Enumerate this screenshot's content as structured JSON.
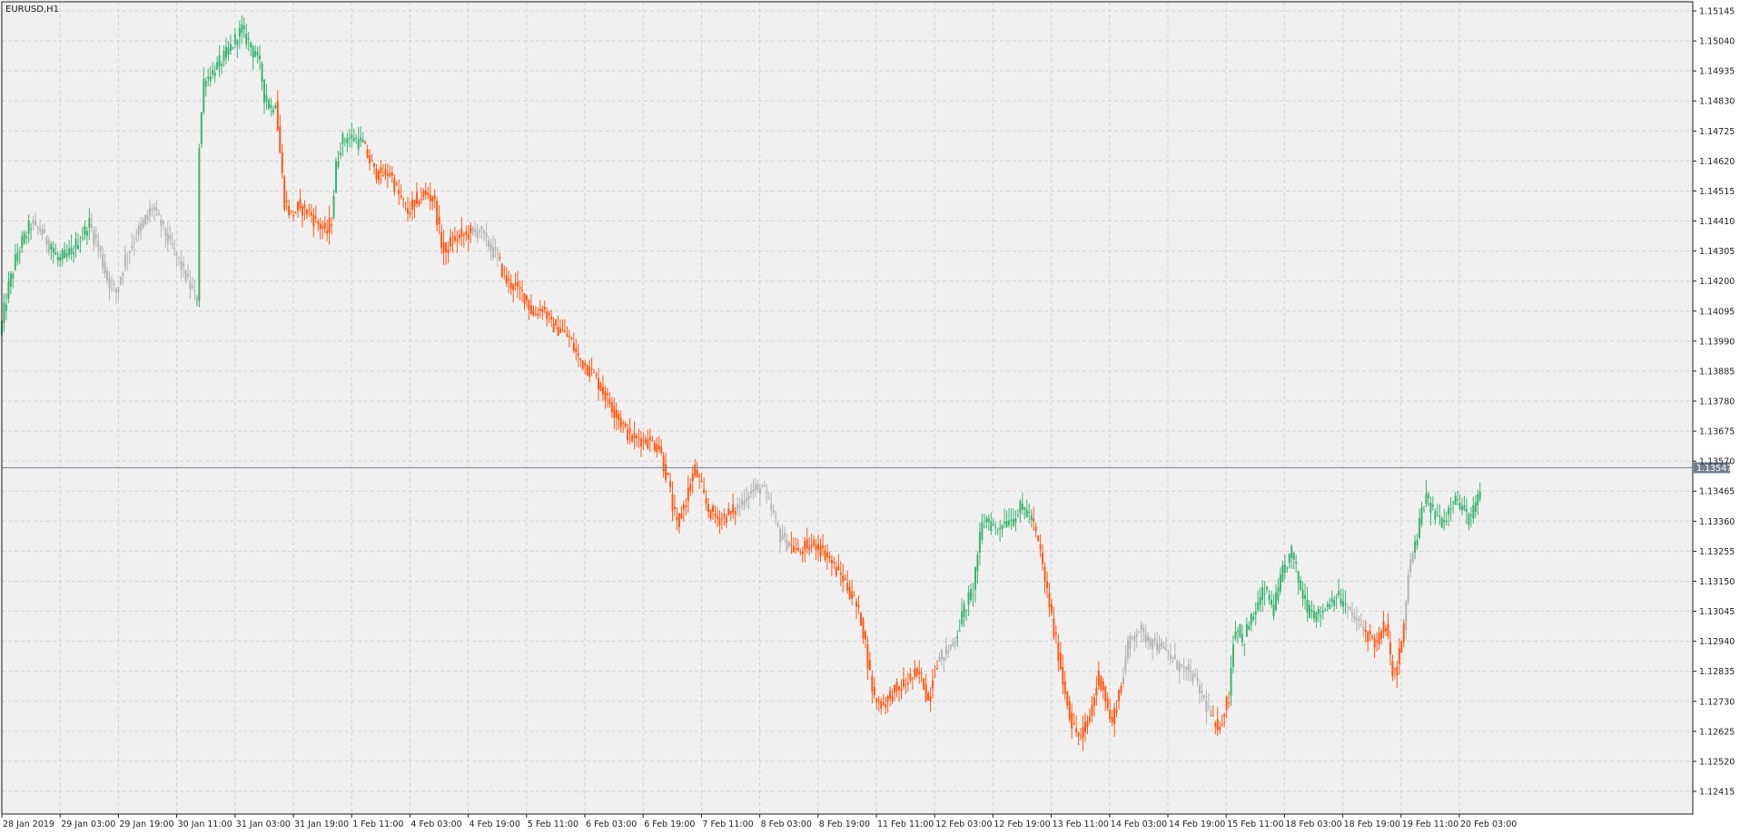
{
  "window": {
    "symbol_label": "EURUSD,H1"
  },
  "colors": {
    "background": "#f0f0f0",
    "grid": "#d2d2d2",
    "axis": "#1e1e1e",
    "bull": "#3cb371",
    "bear": "#ff5a14",
    "neutral": "#b4b4b4",
    "price_line": "#708090",
    "badge_bg": "#708090"
  },
  "chart_data": {
    "type": "candlestick",
    "symbol": "EURUSD",
    "timeframe": "H1",
    "ylim": [
      1.1236,
      1.1516
    ],
    "y_ticks": [
      "1.15145",
      "1.15040",
      "1.14935",
      "1.14830",
      "1.14725",
      "1.14620",
      "1.14515",
      "1.14410",
      "1.14305",
      "1.14200",
      "1.14095",
      "1.13990",
      "1.13885",
      "1.13780",
      "1.13675",
      "1.13570",
      "1.13465",
      "1.13360",
      "1.13255",
      "1.13150",
      "1.13045",
      "1.12940",
      "1.12835",
      "1.12730",
      "1.12625",
      "1.12520",
      "1.12415"
    ],
    "x_ticks": [
      "28 Jan 2019",
      "29 Jan 03:00",
      "29 Jan 19:00",
      "30 Jan 11:00",
      "31 Jan 03:00",
      "31 Jan 19:00",
      "1 Feb 11:00",
      "4 Feb 03:00",
      "4 Feb 19:00",
      "5 Feb 11:00",
      "6 Feb 03:00",
      "6 Feb 19:00",
      "7 Feb 11:00",
      "8 Feb 03:00",
      "8 Feb 19:00",
      "11 Feb 11:00",
      "12 Feb 03:00",
      "12 Feb 19:00",
      "13 Feb 11:00",
      "14 Feb 03:00",
      "14 Feb 19:00",
      "15 Feb 11:00",
      "18 Feb 03:00",
      "18 Feb 19:00",
      "19 Feb 11:00",
      "20 Feb 03:00"
    ],
    "current_price": "1.13547",
    "current_price_value": 1.13547,
    "segments": [
      {
        "color": "bull",
        "points": [
          [
            0,
            1.1401
          ],
          [
            4,
            1.1418
          ],
          [
            8,
            1.143
          ],
          [
            14,
            1.144
          ]
        ]
      },
      {
        "color": "neutral",
        "points": [
          [
            14,
            1.144
          ],
          [
            18,
            1.1438
          ],
          [
            22,
            1.1433
          ]
        ]
      },
      {
        "color": "bull",
        "points": [
          [
            22,
            1.1433
          ],
          [
            26,
            1.1427
          ],
          [
            32,
            1.143
          ],
          [
            36,
            1.1435
          ],
          [
            40,
            1.144
          ]
        ]
      },
      {
        "color": "neutral",
        "points": [
          [
            40,
            1.144
          ],
          [
            44,
            1.1432
          ],
          [
            48,
            1.1421
          ],
          [
            52,
            1.1416
          ],
          [
            56,
            1.1428
          ],
          [
            60,
            1.1435
          ],
          [
            64,
            1.144
          ],
          [
            68,
            1.1446
          ],
          [
            72,
            1.144
          ],
          [
            76,
            1.1433
          ],
          [
            80,
            1.1427
          ],
          [
            84,
            1.142
          ],
          [
            88,
            1.1413
          ]
        ]
      },
      {
        "color": "bull",
        "points": [
          [
            88,
            1.1413
          ],
          [
            89,
            1.1468
          ],
          [
            91,
            1.149
          ],
          [
            95,
            1.1493
          ],
          [
            100,
            1.1498
          ],
          [
            104,
            1.1503
          ],
          [
            108,
            1.1508
          ],
          [
            112,
            1.1502
          ],
          [
            116,
            1.1496
          ],
          [
            118,
            1.1485
          ],
          [
            121,
            1.148
          ],
          [
            123,
            1.1483
          ]
        ]
      },
      {
        "color": "bear",
        "points": [
          [
            123,
            1.1483
          ],
          [
            125,
            1.1465
          ],
          [
            127,
            1.1448
          ],
          [
            130,
            1.1443
          ],
          [
            134,
            1.1446
          ],
          [
            138,
            1.1444
          ],
          [
            142,
            1.144
          ],
          [
            146,
            1.1437
          ],
          [
            148,
            1.1442
          ]
        ]
      },
      {
        "color": "bull",
        "points": [
          [
            148,
            1.1442
          ],
          [
            150,
            1.146
          ],
          [
            152,
            1.1468
          ],
          [
            154,
            1.147
          ],
          [
            158,
            1.147
          ],
          [
            162,
            1.1468
          ]
        ]
      },
      {
        "color": "bear",
        "points": [
          [
            162,
            1.1468
          ],
          [
            166,
            1.146
          ],
          [
            170,
            1.1457
          ],
          [
            174,
            1.1458
          ],
          [
            178,
            1.145
          ],
          [
            182,
            1.1444
          ],
          [
            186,
            1.1448
          ],
          [
            190,
            1.1451
          ],
          [
            194,
            1.1448
          ],
          [
            196,
            1.1437
          ],
          [
            198,
            1.143
          ],
          [
            202,
            1.1434
          ],
          [
            206,
            1.1436
          ],
          [
            210,
            1.1437
          ]
        ]
      },
      {
        "color": "neutral",
        "points": [
          [
            210,
            1.1437
          ],
          [
            214,
            1.1438
          ],
          [
            218,
            1.1433
          ],
          [
            222,
            1.1428
          ]
        ]
      },
      {
        "color": "bear",
        "points": [
          [
            222,
            1.1428
          ],
          [
            226,
            1.142
          ],
          [
            230,
            1.1418
          ],
          [
            234,
            1.1415
          ],
          [
            238,
            1.1408
          ],
          [
            242,
            1.1411
          ],
          [
            246,
            1.1405
          ],
          [
            250,
            1.1403
          ],
          [
            254,
            1.14
          ],
          [
            258,
            1.1393
          ],
          [
            262,
            1.139
          ],
          [
            266,
            1.1386
          ],
          [
            270,
            1.138
          ],
          [
            274,
            1.1375
          ],
          [
            278,
            1.1369
          ],
          [
            282,
            1.1365
          ],
          [
            286,
            1.1365
          ],
          [
            290,
            1.1364
          ],
          [
            294,
            1.1362
          ],
          [
            298,
            1.135
          ],
          [
            300,
            1.1341
          ],
          [
            302,
            1.1334
          ],
          [
            304,
            1.134
          ],
          [
            306,
            1.1343
          ],
          [
            308,
            1.135
          ],
          [
            310,
            1.1354
          ],
          [
            312,
            1.135
          ],
          [
            314,
            1.1344
          ],
          [
            316,
            1.134
          ],
          [
            320,
            1.1337
          ],
          [
            324,
            1.1338
          ],
          [
            328,
            1.134
          ]
        ]
      },
      {
        "color": "neutral",
        "points": [
          [
            328,
            1.134
          ],
          [
            332,
            1.1344
          ],
          [
            336,
            1.1347
          ],
          [
            340,
            1.1348
          ],
          [
            344,
            1.134
          ],
          [
            348,
            1.1331
          ],
          [
            352,
            1.1328
          ]
        ]
      },
      {
        "color": "bear",
        "points": [
          [
            352,
            1.1328
          ],
          [
            356,
            1.1325
          ],
          [
            360,
            1.1327
          ],
          [
            364,
            1.1328
          ],
          [
            368,
            1.1325
          ],
          [
            372,
            1.132
          ],
          [
            376,
            1.1316
          ],
          [
            380,
            1.131
          ],
          [
            382,
            1.1306
          ],
          [
            384,
            1.1302
          ],
          [
            386,
            1.1293
          ],
          [
            388,
            1.1282
          ],
          [
            390,
            1.1274
          ],
          [
            394,
            1.1272
          ],
          [
            398,
            1.1276
          ],
          [
            402,
            1.1278
          ],
          [
            406,
            1.1281
          ],
          [
            410,
            1.1283
          ],
          [
            412,
            1.1279
          ],
          [
            414,
            1.1273
          ],
          [
            416,
            1.1282
          ],
          [
            418,
            1.1287
          ]
        ]
      },
      {
        "color": "neutral",
        "points": [
          [
            418,
            1.1287
          ],
          [
            422,
            1.129
          ],
          [
            426,
            1.1295
          ]
        ]
      },
      {
        "color": "bull",
        "points": [
          [
            426,
            1.1295
          ],
          [
            430,
            1.1305
          ],
          [
            434,
            1.1312
          ],
          [
            436,
            1.1325
          ],
          [
            438,
            1.1334
          ],
          [
            440,
            1.1337
          ],
          [
            444,
            1.1333
          ],
          [
            448,
            1.1336
          ],
          [
            452,
            1.1337
          ],
          [
            456,
            1.1341
          ],
          [
            460,
            1.1337
          ]
        ]
      },
      {
        "color": "bear",
        "points": [
          [
            460,
            1.1337
          ],
          [
            464,
            1.1325
          ],
          [
            466,
            1.1315
          ],
          [
            468,
            1.1307
          ],
          [
            470,
            1.1297
          ],
          [
            472,
            1.129
          ],
          [
            474,
            1.128
          ],
          [
            476,
            1.1273
          ],
          [
            478,
            1.1265
          ],
          [
            480,
            1.1262
          ],
          [
            482,
            1.126
          ],
          [
            486,
            1.1268
          ],
          [
            488,
            1.1275
          ],
          [
            490,
            1.1282
          ],
          [
            492,
            1.1278
          ],
          [
            494,
            1.127
          ],
          [
            496,
            1.1265
          ],
          [
            498,
            1.1273
          ],
          [
            500,
            1.1279
          ]
        ]
      },
      {
        "color": "neutral",
        "points": [
          [
            500,
            1.1279
          ],
          [
            502,
            1.1288
          ],
          [
            504,
            1.1295
          ],
          [
            508,
            1.1298
          ],
          [
            512,
            1.1295
          ],
          [
            516,
            1.1293
          ],
          [
            520,
            1.129
          ],
          [
            524,
            1.1287
          ],
          [
            528,
            1.1284
          ],
          [
            532,
            1.1282
          ],
          [
            536,
            1.1275
          ],
          [
            540,
            1.1268
          ]
        ]
      },
      {
        "color": "bear",
        "points": [
          [
            540,
            1.1268
          ],
          [
            542,
            1.1263
          ],
          [
            544,
            1.1265
          ],
          [
            546,
            1.127
          ],
          [
            548,
            1.1275
          ]
        ]
      },
      {
        "color": "bull",
        "points": [
          [
            548,
            1.1275
          ],
          [
            550,
            1.1295
          ],
          [
            552,
            1.13
          ],
          [
            554,
            1.1293
          ],
          [
            556,
            1.1298
          ],
          [
            560,
            1.1305
          ],
          [
            564,
            1.1312
          ],
          [
            568,
            1.1305
          ],
          [
            572,
            1.1318
          ],
          [
            576,
            1.1325
          ],
          [
            580,
            1.1312
          ],
          [
            584,
            1.1305
          ],
          [
            588,
            1.1303
          ],
          [
            592,
            1.1307
          ],
          [
            596,
            1.131
          ],
          [
            600,
            1.1306
          ]
        ]
      },
      {
        "color": "neutral",
        "points": [
          [
            600,
            1.1306
          ],
          [
            604,
            1.1302
          ],
          [
            608,
            1.1298
          ]
        ]
      },
      {
        "color": "bear",
        "points": [
          [
            608,
            1.1298
          ],
          [
            612,
            1.1295
          ],
          [
            614,
            1.1293
          ],
          [
            616,
            1.1297
          ],
          [
            618,
            1.13
          ],
          [
            620,
            1.1287
          ],
          [
            622,
            1.1282
          ],
          [
            624,
            1.129
          ],
          [
            626,
            1.1298
          ]
        ]
      },
      {
        "color": "neutral",
        "points": [
          [
            626,
            1.1298
          ],
          [
            628,
            1.1318
          ],
          [
            630,
            1.1325
          ]
        ]
      },
      {
        "color": "bull",
        "points": [
          [
            630,
            1.1325
          ],
          [
            632,
            1.133
          ],
          [
            634,
            1.134
          ],
          [
            636,
            1.1344
          ],
          [
            640,
            1.1338
          ],
          [
            644,
            1.1336
          ],
          [
            648,
            1.1345
          ],
          [
            652,
            1.134
          ],
          [
            656,
            1.1337
          ],
          [
            660,
            1.1346
          ]
        ]
      }
    ]
  }
}
